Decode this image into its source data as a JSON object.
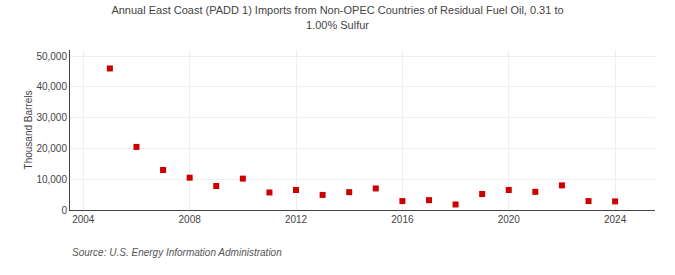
{
  "chart_data": {
    "type": "scatter",
    "title": "Annual East Coast (PADD 1) Imports from Non-OPEC Countries of Residual Fuel Oil, 0.31 to\n1.00% Sulfur",
    "ylabel": "Thousand Barrels",
    "annotations": [
      "Source: U.S. Energy Information Administration"
    ],
    "x": [
      2005,
      2006,
      2007,
      2008,
      2009,
      2010,
      2011,
      2012,
      2013,
      2014,
      2015,
      2016,
      2017,
      2018,
      2019,
      2020,
      2021,
      2022,
      2023,
      2024
    ],
    "values": [
      46000,
      20500,
      13000,
      10500,
      7800,
      10200,
      5700,
      6500,
      4900,
      5800,
      7000,
      2900,
      3200,
      1800,
      5200,
      6500,
      5900,
      8000,
      2900,
      2800
    ],
    "color": "#cc0000",
    "marker": "square",
    "xlim": [
      2003.5,
      2025.5
    ],
    "xticks": [
      2004,
      2008,
      2012,
      2016,
      2020,
      2024
    ],
    "ylim": [
      0,
      52000
    ],
    "yticks": [
      0,
      {
        "value": 10000,
        "label": "10,000"
      },
      {
        "value": 20000,
        "label": "20,000"
      },
      {
        "value": 30000,
        "label": "30,000"
      },
      {
        "value": 40000,
        "label": "40,000"
      },
      {
        "value": 50000,
        "label": "50,000"
      }
    ],
    "grid": true
  }
}
